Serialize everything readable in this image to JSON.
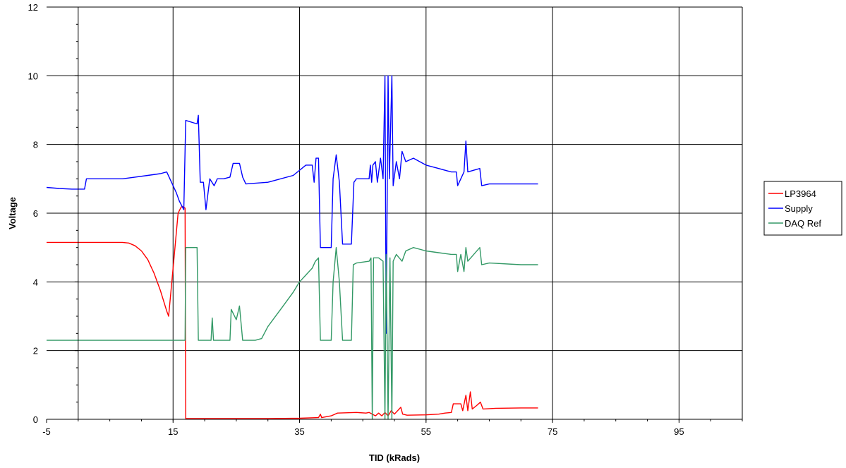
{
  "chart_data": {
    "type": "line",
    "xlabel": "TID (kRads)",
    "ylabel": "Voltage",
    "xlim": [
      -5,
      105
    ],
    "ylim": [
      0,
      12
    ],
    "x_ticks": [
      -5,
      15,
      35,
      55,
      75,
      95
    ],
    "y_ticks": [
      0,
      2,
      4,
      6,
      8,
      10,
      12
    ],
    "grid": true,
    "legend_position": "right",
    "series": [
      {
        "name": "LP3964",
        "color": "#ff0000",
        "points": [
          [
            -5,
            5.15
          ],
          [
            0,
            5.15
          ],
          [
            5,
            5.15
          ],
          [
            7,
            5.15
          ],
          [
            8,
            5.13
          ],
          [
            9,
            5.05
          ],
          [
            10,
            4.9
          ],
          [
            11,
            4.65
          ],
          [
            12,
            4.25
          ],
          [
            13,
            3.75
          ],
          [
            14,
            3.15
          ],
          [
            14.3,
            3.0
          ],
          [
            14.6,
            3.6
          ],
          [
            15.2,
            4.8
          ],
          [
            15.8,
            6.0
          ],
          [
            16.2,
            6.15
          ],
          [
            16.4,
            6.2
          ],
          [
            16.9,
            6.15
          ],
          [
            17.0,
            0.02
          ],
          [
            20,
            0.02
          ],
          [
            25,
            0.02
          ],
          [
            30,
            0.02
          ],
          [
            35,
            0.03
          ],
          [
            38,
            0.05
          ],
          [
            38.3,
            0.15
          ],
          [
            38.5,
            0.05
          ],
          [
            40,
            0.1
          ],
          [
            41,
            0.18
          ],
          [
            44,
            0.2
          ],
          [
            45.5,
            0.18
          ],
          [
            46,
            0.2
          ],
          [
            47,
            0.1
          ],
          [
            47.5,
            0.18
          ],
          [
            48,
            0.1
          ],
          [
            48.5,
            0.2
          ],
          [
            49,
            0.1
          ],
          [
            49.5,
            0.25
          ],
          [
            50,
            0.15
          ],
          [
            51,
            0.35
          ],
          [
            51.3,
            0.15
          ],
          [
            52,
            0.12
          ],
          [
            55,
            0.13
          ],
          [
            57,
            0.15
          ],
          [
            58,
            0.18
          ],
          [
            59,
            0.2
          ],
          [
            59.3,
            0.45
          ],
          [
            60.5,
            0.45
          ],
          [
            60.8,
            0.25
          ],
          [
            61.3,
            0.7
          ],
          [
            61.6,
            0.25
          ],
          [
            62,
            0.8
          ],
          [
            62.3,
            0.3
          ],
          [
            63,
            0.4
          ],
          [
            63.6,
            0.5
          ],
          [
            64,
            0.3
          ],
          [
            66,
            0.32
          ],
          [
            70,
            0.33
          ],
          [
            72.7,
            0.33
          ]
        ]
      },
      {
        "name": "Supply",
        "color": "#0000ff",
        "points": [
          [
            -5,
            6.75
          ],
          [
            -3,
            6.72
          ],
          [
            -1,
            6.7
          ],
          [
            1,
            6.7
          ],
          [
            1.3,
            7.0
          ],
          [
            3,
            7.0
          ],
          [
            5,
            7.0
          ],
          [
            7,
            7.0
          ],
          [
            9,
            7.05
          ],
          [
            11,
            7.1
          ],
          [
            13,
            7.15
          ],
          [
            14,
            7.2
          ],
          [
            14.5,
            7.0
          ],
          [
            15,
            6.8
          ],
          [
            15.5,
            6.6
          ],
          [
            16,
            6.35
          ],
          [
            16.7,
            6.1
          ],
          [
            17,
            8.7
          ],
          [
            18.8,
            8.6
          ],
          [
            19.0,
            8.85
          ],
          [
            19.3,
            6.9
          ],
          [
            19.8,
            6.9
          ],
          [
            20.2,
            6.1
          ],
          [
            20.8,
            7.0
          ],
          [
            21.5,
            6.8
          ],
          [
            22,
            7.0
          ],
          [
            23,
            7.0
          ],
          [
            24,
            7.05
          ],
          [
            24.5,
            7.45
          ],
          [
            25.5,
            7.45
          ],
          [
            26,
            7.05
          ],
          [
            26.5,
            6.85
          ],
          [
            30,
            6.9
          ],
          [
            34,
            7.1
          ],
          [
            36,
            7.4
          ],
          [
            37,
            7.4
          ],
          [
            37.3,
            6.9
          ],
          [
            37.6,
            7.6
          ],
          [
            38,
            7.6
          ],
          [
            38.3,
            5.0
          ],
          [
            40,
            5.0
          ],
          [
            40.3,
            7.0
          ],
          [
            40.8,
            7.7
          ],
          [
            41.3,
            6.9
          ],
          [
            41.8,
            5.1
          ],
          [
            43.2,
            5.1
          ],
          [
            43.6,
            6.9
          ],
          [
            44,
            7.0
          ],
          [
            46,
            7.0
          ],
          [
            46.2,
            7.4
          ],
          [
            46.4,
            6.9
          ],
          [
            46.6,
            7.4
          ],
          [
            47,
            7.5
          ],
          [
            47.3,
            6.9
          ],
          [
            47.8,
            7.6
          ],
          [
            48.2,
            7.0
          ],
          [
            48.5,
            10.0
          ],
          [
            48.7,
            2.5
          ],
          [
            49.0,
            10.0
          ],
          [
            49.2,
            7.0
          ],
          [
            49.6,
            10.0
          ],
          [
            49.8,
            6.8
          ],
          [
            50.3,
            7.5
          ],
          [
            50.8,
            7.0
          ],
          [
            51.2,
            7.8
          ],
          [
            51.8,
            7.5
          ],
          [
            53,
            7.6
          ],
          [
            55,
            7.4
          ],
          [
            57,
            7.3
          ],
          [
            59,
            7.2
          ],
          [
            59.8,
            7.2
          ],
          [
            60.0,
            6.8
          ],
          [
            60.5,
            7.0
          ],
          [
            61.0,
            7.2
          ],
          [
            61.3,
            8.1
          ],
          [
            61.6,
            7.2
          ],
          [
            63.5,
            7.3
          ],
          [
            63.8,
            6.8
          ],
          [
            65,
            6.85
          ],
          [
            70,
            6.85
          ],
          [
            72.7,
            6.85
          ]
        ]
      },
      {
        "name": "DAQ Ref",
        "color": "#339966",
        "points": [
          [
            -5,
            2.3
          ],
          [
            0,
            2.3
          ],
          [
            5,
            2.3
          ],
          [
            10,
            2.3
          ],
          [
            15,
            2.3
          ],
          [
            16.9,
            2.3
          ],
          [
            17.0,
            5.0
          ],
          [
            18.8,
            5.0
          ],
          [
            19.0,
            2.3
          ],
          [
            20,
            2.3
          ],
          [
            21,
            2.3
          ],
          [
            21.2,
            2.95
          ],
          [
            21.4,
            2.3
          ],
          [
            23,
            2.3
          ],
          [
            24,
            2.3
          ],
          [
            24.2,
            3.2
          ],
          [
            25,
            2.9
          ],
          [
            25.5,
            3.3
          ],
          [
            26,
            2.3
          ],
          [
            28,
            2.3
          ],
          [
            29,
            2.35
          ],
          [
            30,
            2.7
          ],
          [
            32,
            3.2
          ],
          [
            34,
            3.7
          ],
          [
            35,
            4.0
          ],
          [
            36,
            4.2
          ],
          [
            37,
            4.4
          ],
          [
            37.5,
            4.6
          ],
          [
            38,
            4.7
          ],
          [
            38.3,
            2.3
          ],
          [
            40,
            2.3
          ],
          [
            40.3,
            4.0
          ],
          [
            40.8,
            5.0
          ],
          [
            41.3,
            4.0
          ],
          [
            41.8,
            2.3
          ],
          [
            43.2,
            2.3
          ],
          [
            43.5,
            4.5
          ],
          [
            44,
            4.55
          ],
          [
            46,
            4.6
          ],
          [
            46.3,
            4.7
          ],
          [
            46.5,
            0.0
          ],
          [
            46.7,
            4.7
          ],
          [
            47.5,
            4.7
          ],
          [
            48.2,
            4.6
          ],
          [
            48.5,
            0.0
          ],
          [
            48.7,
            4.8
          ],
          [
            49.0,
            0.0
          ],
          [
            49.3,
            4.7
          ],
          [
            49.6,
            0.0
          ],
          [
            49.8,
            4.6
          ],
          [
            50.3,
            4.8
          ],
          [
            51.2,
            4.6
          ],
          [
            51.8,
            4.9
          ],
          [
            53,
            5.0
          ],
          [
            55,
            4.9
          ],
          [
            57,
            4.85
          ],
          [
            59,
            4.8
          ],
          [
            59.8,
            4.8
          ],
          [
            60,
            4.3
          ],
          [
            60.5,
            4.8
          ],
          [
            61.0,
            4.3
          ],
          [
            61.3,
            5.0
          ],
          [
            61.6,
            4.6
          ],
          [
            63.5,
            5.0
          ],
          [
            63.8,
            4.5
          ],
          [
            65,
            4.55
          ],
          [
            70,
            4.5
          ],
          [
            72.7,
            4.5
          ]
        ]
      }
    ]
  }
}
